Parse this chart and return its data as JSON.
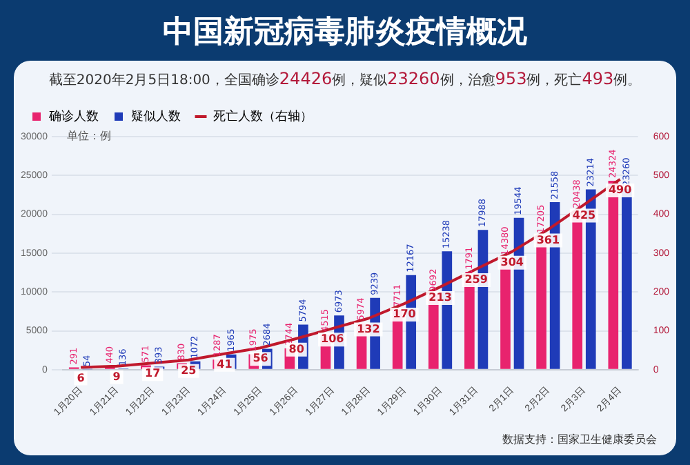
{
  "chart_data": {
    "type": "bar",
    "title": "中国新冠病毒肺炎疫情概况",
    "subtitle": "截至2020年2月5日18:00，全国确诊24426例，疑似23260例，治愈953例，死亡493例。",
    "ylabel": "单位：例",
    "categories": [
      "1月20日",
      "1月21日",
      "1月22日",
      "1月23日",
      "1月24日",
      "1月25日",
      "1月26日",
      "1月27日",
      "1月28日",
      "1月29日",
      "1月30日",
      "1月31日",
      "2月1日",
      "2月2日",
      "2月3日",
      "2月4日"
    ],
    "series": [
      {
        "name": "确诊人数",
        "color": "#e8236e",
        "values": [
          291,
          440,
          571,
          830,
          1287,
          1975,
          2744,
          4515,
          5974,
          7711,
          9692,
          11791,
          14380,
          17205,
          20438,
          24324
        ]
      },
      {
        "name": "疑似人数",
        "color": "#1f3bb8",
        "values": [
          54,
          136,
          393,
          1072,
          1965,
          2684,
          5794,
          6973,
          9239,
          12167,
          15238,
          17988,
          19544,
          21558,
          23214,
          23260
        ]
      },
      {
        "name": "死亡人数（右轴）",
        "type": "line",
        "axis": "y2",
        "color": "#c0192c",
        "values": [
          6,
          9,
          17,
          25,
          41,
          56,
          80,
          106,
          132,
          170,
          213,
          259,
          304,
          361,
          425,
          490
        ]
      }
    ],
    "ylim": [
      0,
      30000
    ],
    "yticks": [
      0,
      5000,
      10000,
      15000,
      20000,
      25000,
      30000
    ],
    "y2lim": [
      0,
      600
    ],
    "y2ticks": [
      0,
      100,
      200,
      300,
      400,
      500,
      600
    ],
    "grid": "y",
    "legend": "top left",
    "marker": "none",
    "data_labels": true,
    "annotations": [
      "数据支持：国家卫生健康委员会"
    ]
  }
}
